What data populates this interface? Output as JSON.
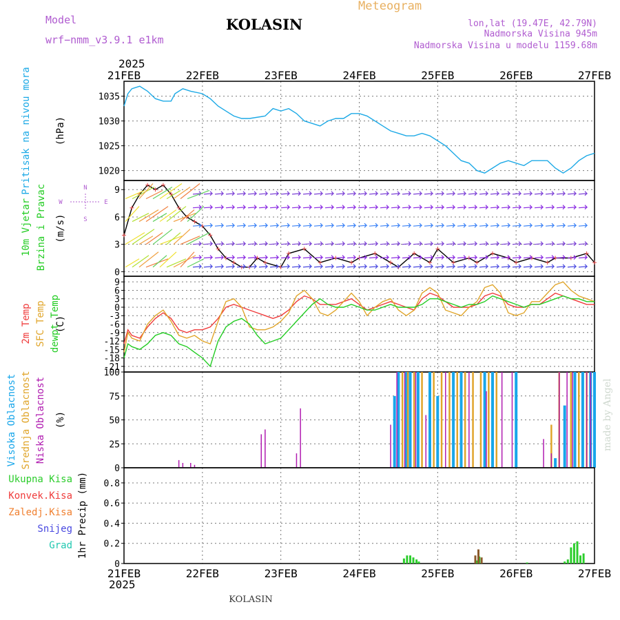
{
  "header": {
    "model_label": "Model",
    "model_name": "wrf−nmm_v3.9.1 e1km",
    "station": "KOLASIN",
    "app_title": "Meteogram",
    "coords": "lon,lat (19.47E, 42.79N)",
    "elevation": "Nadmorska Visina 945m",
    "model_elevation": "Nadmorska Visina u modelu 1159.68m",
    "year_top": "2025",
    "year_bottom": "2025",
    "footer_station": "KOLASIN",
    "watermark": "made by Angel"
  },
  "colors": {
    "pressure": "#1ca9e6",
    "temp2m": "#ef3b3b",
    "sfc": "#e0a52a",
    "dewpoint": "#22cc22",
    "wind_black": "#000000",
    "wind_marker": "#e04545",
    "high_cloud": "#18a6ea",
    "mid_cloud": "#e0a52a",
    "low_cloud": "#b01cb0",
    "total_precip": "#2ccd2c",
    "conv_precip": "#ef3b3b",
    "frozen_precip": "#f08030",
    "snow": "#4848e0",
    "graupel": "#20c8b0",
    "label_purple": "#b05cd0",
    "label_orange": "#e8b060",
    "label_cyan": "#1ca9e6"
  },
  "x_axis": {
    "ticks": [
      "21FEB",
      "22FEB",
      "23FEB",
      "24FEB",
      "25FEB",
      "26FEB",
      "27FEB"
    ]
  },
  "chart_data": [
    {
      "type": "line",
      "panel": "pressure",
      "ylabel_lines": [
        "Pritisak na nivou mora"
      ],
      "unit": "(hPa)",
      "yticks": [
        1020,
        1025,
        1030,
        1035
      ],
      "ylim": [
        1018,
        1038
      ],
      "x_unit": "days since 21FEB",
      "series": [
        {
          "x": [
            0,
            0.05,
            0.1,
            0.2,
            0.3,
            0.4,
            0.5,
            0.6,
            0.65,
            0.75,
            0.85,
            1.0,
            1.1,
            1.2,
            1.3,
            1.4,
            1.5,
            1.6,
            1.8,
            1.9,
            2.0,
            2.1,
            2.2,
            2.3,
            2.4,
            2.5,
            2.6,
            2.7,
            2.8,
            2.9,
            3.0,
            3.1,
            3.2,
            3.3,
            3.4,
            3.5,
            3.6,
            3.7,
            3.8,
            3.9,
            4.0,
            4.1,
            4.2,
            4.3,
            4.4,
            4.5,
            4.6,
            4.7,
            4.8,
            4.9,
            5.0,
            5.1,
            5.2,
            5.3,
            5.4,
            5.5,
            5.6,
            5.7,
            5.8,
            5.9,
            6.0
          ],
          "values": [
            1033,
            1035.5,
            1036.5,
            1037,
            1036,
            1034.5,
            1034,
            1034,
            1035.5,
            1036.5,
            1036,
            1035.5,
            1034.5,
            1033,
            1032,
            1031,
            1030.5,
            1030.5,
            1031,
            1032.5,
            1032,
            1032.5,
            1031.5,
            1030,
            1029.5,
            1029,
            1030,
            1030.5,
            1030.5,
            1031.5,
            1031.5,
            1031,
            1030,
            1029,
            1028,
            1027.5,
            1027,
            1027,
            1027.5,
            1027,
            1026,
            1025,
            1023.5,
            1022,
            1021.5,
            1020,
            1019.5,
            1020.5,
            1021.5,
            1022,
            1021.5,
            1021,
            1022,
            1022,
            1022,
            1020.5,
            1019.5,
            1020.5,
            1022,
            1023,
            1023.5
          ]
        }
      ]
    },
    {
      "type": "line",
      "panel": "wind",
      "ylabel_lines": [
        "10m Vjetar",
        "Brzina i Pravac"
      ],
      "unit": "(m/s)",
      "compass": [
        "N",
        "W",
        "E",
        "S"
      ],
      "yticks": [
        0,
        3,
        6,
        9
      ],
      "ylim": [
        -0.5,
        10
      ],
      "x_unit": "days since 21FEB",
      "series": [
        {
          "name": "speed",
          "x": [
            0,
            0.1,
            0.2,
            0.3,
            0.4,
            0.5,
            0.6,
            0.7,
            0.8,
            0.9,
            1.0,
            1.1,
            1.2,
            1.3,
            1.4,
            1.5,
            1.6,
            1.7,
            1.8,
            2.0,
            2.1,
            2.3,
            2.5,
            2.7,
            2.9,
            3.0,
            3.2,
            3.4,
            3.5,
            3.7,
            3.9,
            4.0,
            4.2,
            4.4,
            4.5,
            4.7,
            4.9,
            5.0,
            5.2,
            5.4,
            5.5,
            5.7,
            5.9,
            6.0
          ],
          "values": [
            4,
            7,
            8.5,
            9.5,
            9,
            9.5,
            8.5,
            7,
            6,
            5.5,
            5,
            4,
            2.5,
            1.5,
            1,
            0.5,
            0.5,
            1.5,
            1,
            0.5,
            2,
            2.5,
            1,
            1.5,
            1,
            1.5,
            2,
            1,
            0.5,
            2,
            1,
            2.5,
            1,
            1.5,
            1,
            2,
            1.5,
            1,
            1.5,
            1,
            1.5,
            1.5,
            2,
            1
          ]
        }
      ],
      "barb_rows_ms": [
        0.5,
        1.5,
        3,
        5,
        7,
        8.5
      ]
    },
    {
      "type": "line",
      "panel": "temperature",
      "ylabel_lines": [
        "2m Temp",
        "SFC Temp",
        "dewpt Temp"
      ],
      "unit": "(C)",
      "yticks": [
        -21,
        -18,
        -15,
        -12,
        -9,
        -6,
        -3,
        0,
        3,
        6,
        9
      ],
      "ylim": [
        -23,
        11
      ],
      "x_unit": "days since 21FEB",
      "series": [
        {
          "name": "2m Temp",
          "x": [
            0,
            0.05,
            0.1,
            0.2,
            0.3,
            0.4,
            0.5,
            0.6,
            0.7,
            0.8,
            0.9,
            1.0,
            1.1,
            1.2,
            1.3,
            1.4,
            1.5,
            1.6,
            1.7,
            1.8,
            1.9,
            2.0,
            2.1,
            2.2,
            2.3,
            2.4,
            2.5,
            2.6,
            2.7,
            2.8,
            2.9,
            3.0,
            3.1,
            3.2,
            3.3,
            3.4,
            3.5,
            3.6,
            3.7,
            3.8,
            3.9,
            4.0,
            4.1,
            4.2,
            4.3,
            4.4,
            4.5,
            4.6,
            4.7,
            4.8,
            4.9,
            5.0,
            5.1,
            5.2,
            5.3,
            5.4,
            5.5,
            5.6,
            5.7,
            5.8,
            5.9,
            6.0
          ],
          "values": [
            -13,
            -8,
            -10,
            -11,
            -7,
            -4,
            -2,
            -4,
            -8,
            -9,
            -8,
            -8,
            -7,
            -4,
            0,
            1,
            0,
            -1,
            -2,
            -3,
            -4,
            -3,
            -1,
            2,
            4,
            3,
            1,
            1,
            1,
            2,
            3,
            1,
            -1,
            0,
            1,
            2,
            1,
            0,
            -1,
            3,
            5,
            4,
            2,
            0,
            0,
            0,
            1,
            4,
            5,
            4,
            1,
            0,
            0,
            1,
            1,
            3,
            5,
            4,
            3,
            2,
            1,
            1
          ]
        },
        {
          "name": "SFC Temp",
          "x": [
            0,
            0.05,
            0.1,
            0.2,
            0.3,
            0.4,
            0.5,
            0.6,
            0.7,
            0.8,
            0.9,
            1.0,
            1.1,
            1.2,
            1.3,
            1.4,
            1.5,
            1.6,
            1.7,
            1.8,
            1.9,
            2.0,
            2.1,
            2.2,
            2.3,
            2.4,
            2.5,
            2.6,
            2.7,
            2.8,
            2.9,
            3.0,
            3.1,
            3.2,
            3.3,
            3.4,
            3.5,
            3.6,
            3.7,
            3.8,
            3.9,
            4.0,
            4.1,
            4.2,
            4.3,
            4.4,
            4.5,
            4.6,
            4.7,
            4.8,
            4.9,
            5.0,
            5.1,
            5.2,
            5.3,
            5.4,
            5.5,
            5.6,
            5.7,
            5.8,
            5.9,
            6.0
          ],
          "values": [
            -16,
            -9,
            -11,
            -12,
            -6,
            -3,
            -1,
            -5,
            -10,
            -11,
            -10,
            -12,
            -13,
            -5,
            2,
            3,
            0,
            -7,
            -8,
            -8,
            -7,
            -5,
            -2,
            4,
            6,
            3,
            -2,
            -3,
            -1,
            2,
            5,
            2,
            -3,
            0,
            2,
            3,
            -1,
            -3,
            -1,
            5,
            7,
            5,
            -1,
            -2,
            -3,
            0,
            2,
            7,
            8,
            5,
            -2,
            -3,
            -2,
            2,
            2,
            5,
            8,
            9,
            6,
            4,
            3,
            2
          ]
        },
        {
          "name": "dewpt Temp",
          "x": [
            0,
            0.05,
            0.1,
            0.2,
            0.3,
            0.4,
            0.5,
            0.6,
            0.7,
            0.8,
            0.9,
            1.0,
            1.1,
            1.2,
            1.3,
            1.4,
            1.5,
            1.6,
            1.7,
            1.8,
            1.9,
            2.0,
            2.1,
            2.2,
            2.3,
            2.4,
            2.5,
            2.6,
            2.7,
            2.8,
            2.9,
            3.0,
            3.1,
            3.2,
            3.3,
            3.4,
            3.5,
            3.6,
            3.7,
            3.8,
            3.9,
            4.0,
            4.1,
            4.2,
            4.3,
            4.4,
            4.5,
            4.6,
            4.7,
            4.8,
            4.9,
            5.0,
            5.1,
            5.2,
            5.3,
            5.4,
            5.5,
            5.6,
            5.7,
            5.8,
            5.9,
            6.0
          ],
          "values": [
            -18,
            -13,
            -14,
            -15,
            -13,
            -10,
            -9,
            -10,
            -13,
            -14,
            -16,
            -18,
            -21,
            -12,
            -7,
            -5,
            -4,
            -6,
            -10,
            -13,
            -12,
            -11,
            -8,
            -5,
            -2,
            1,
            3,
            1,
            0,
            0,
            1,
            0,
            -1,
            -1,
            0,
            1,
            0,
            0,
            0,
            1,
            3,
            3,
            2,
            1,
            0,
            1,
            1,
            2,
            4,
            3,
            2,
            1,
            0,
            1,
            1,
            2,
            3,
            4,
            3,
            3,
            2,
            2
          ]
        }
      ]
    },
    {
      "type": "bar",
      "panel": "cloud",
      "ylabel_lines": [
        "Visoka Oblacnost",
        "Srednja Oblacnost",
        "Niska Oblacnost"
      ],
      "unit": "(%)",
      "yticks": [
        0,
        25,
        50,
        75,
        100
      ],
      "ylim": [
        0,
        100
      ],
      "x_unit": "days since 21FEB",
      "series": [
        {
          "name": "Visoka Oblacnost",
          "x": [
            3.45,
            3.5,
            3.6,
            3.65,
            3.75,
            3.9,
            4.0,
            4.2,
            4.3,
            4.6,
            4.7,
            5.0,
            5.5,
            5.62,
            5.75,
            5.85,
            5.95,
            6.0
          ],
          "values": [
            75,
            100,
            100,
            100,
            100,
            100,
            75,
            100,
            100,
            100,
            100,
            100,
            10,
            65,
            100,
            100,
            100,
            100
          ]
        },
        {
          "name": "Srednja Oblacnost",
          "x": [
            3.55,
            3.62,
            3.7,
            3.8,
            3.95,
            4.05,
            4.15,
            4.25,
            4.35,
            4.45,
            4.55,
            4.65,
            4.75,
            5.45,
            5.55,
            5.7,
            5.8,
            5.9
          ],
          "values": [
            100,
            100,
            100,
            100,
            100,
            100,
            100,
            100,
            100,
            100,
            100,
            100,
            100,
            45,
            100,
            100,
            100,
            100
          ]
        },
        {
          "name": "Niska Oblacnost",
          "x": [
            0.7,
            0.75,
            0.85,
            0.9,
            1.75,
            1.8,
            2.2,
            2.25,
            3.4,
            3.48,
            3.58,
            3.72,
            3.85,
            4.1,
            4.4,
            4.62,
            4.82,
            4.95,
            5.35,
            5.45,
            5.55,
            5.65,
            5.72,
            5.9,
            5.95
          ],
          "values": [
            8,
            5,
            5,
            3,
            35,
            40,
            15,
            62,
            45,
            100,
            100,
            100,
            55,
            100,
            100,
            80,
            100,
            100,
            30,
            15,
            100,
            100,
            100,
            100,
            100
          ]
        }
      ]
    },
    {
      "type": "bar",
      "panel": "precip",
      "ylabel_lines": [
        "1hr Precip (mm)"
      ],
      "legend": [
        "Ukupna Kisa",
        "Konvek.Kisa",
        "Zaledj.Kisa",
        "Snijeg",
        "Grad"
      ],
      "yticks": [
        0,
        0.2,
        0.4,
        0.6,
        0.8
      ],
      "ylim": [
        0,
        0.95
      ],
      "x_unit": "days since 21FEB",
      "series": [
        {
          "name": "Ukupna Kisa",
          "x": [
            3.57,
            3.61,
            3.65,
            3.69,
            3.73,
            3.76,
            4.5,
            4.53,
            5.14,
            5.62,
            5.66,
            5.7,
            5.74,
            5.78,
            5.82,
            5.86
          ],
          "values": [
            0.05,
            0.08,
            0.08,
            0.06,
            0.04,
            0.02,
            0.03,
            0.07,
            0.01,
            0.02,
            0.04,
            0.16,
            0.2,
            0.22,
            0.08,
            0.1
          ]
        },
        {
          "name": "Zaledj.Kisa",
          "x": [
            4.48,
            4.52,
            4.56
          ],
          "values": [
            0.08,
            0.14,
            0.06
          ]
        }
      ]
    }
  ]
}
